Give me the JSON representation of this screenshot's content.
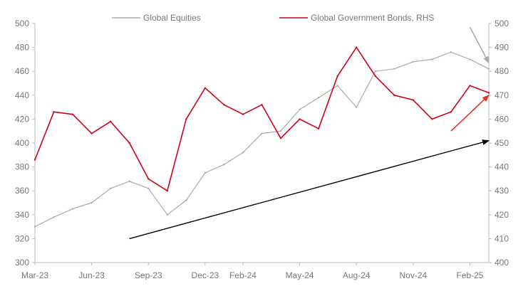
{
  "chart_data": {
    "type": "line",
    "title": "",
    "xlabel": "",
    "ylabel": "",
    "y2label": "",
    "ylim": [
      300,
      500
    ],
    "y2lim": [
      400,
      500
    ],
    "yticks": [
      300,
      320,
      340,
      360,
      380,
      400,
      420,
      440,
      460,
      480,
      500
    ],
    "y2ticks": [
      400,
      410,
      420,
      430,
      440,
      450,
      460,
      470,
      480,
      490,
      500
    ],
    "xticks": [
      "Mar-23",
      "Jun-23",
      "Sep-23",
      "Dec-23",
      "Feb-24",
      "May-24",
      "Aug-24",
      "Nov-24",
      "Feb-25"
    ],
    "grid": false,
    "legend_position": "top",
    "series": [
      {
        "name": "Global Equities",
        "axis": "left",
        "color": "#aaaaaa",
        "x": [
          "Mar-23",
          "Apr-23",
          "May-23",
          "Jun-23",
          "Jul-23",
          "Aug-23",
          "Sep-23",
          "Oct-23",
          "Nov-23",
          "Dec-23",
          "Jan-24",
          "Feb-24",
          "Mar-24",
          "Apr-24",
          "May-24",
          "Jun-24",
          "Jul-24",
          "Aug-24",
          "Sep-24",
          "Oct-24",
          "Nov-24",
          "Dec-24",
          "Jan-25",
          "Feb-25",
          "Mar-25"
        ],
        "values": [
          330,
          338,
          345,
          350,
          362,
          368,
          362,
          340,
          352,
          375,
          382,
          392,
          408,
          410,
          428,
          438,
          448,
          430,
          460,
          462,
          468,
          470,
          476,
          470,
          462
        ]
      },
      {
        "name": "Global Government Bonds, RHS",
        "axis": "right",
        "color": "#d0021b",
        "x": [
          "Mar-23",
          "Apr-23",
          "May-23",
          "Jun-23",
          "Jul-23",
          "Aug-23",
          "Sep-23",
          "Oct-23",
          "Nov-23",
          "Dec-23",
          "Jan-24",
          "Feb-24",
          "Mar-24",
          "Apr-24",
          "May-24",
          "Jun-24",
          "Jul-24",
          "Aug-24",
          "Sep-24",
          "Oct-24",
          "Nov-24",
          "Dec-24",
          "Jan-25",
          "Feb-25",
          "Mar-25"
        ],
        "values": [
          443,
          463,
          462,
          454,
          459,
          450,
          435,
          430,
          460,
          473,
          466,
          462,
          466,
          452,
          460,
          456,
          478,
          490,
          478,
          470,
          468,
          460,
          463,
          474,
          471
        ]
      }
    ],
    "annotations": [
      {
        "type": "arrow",
        "color": "#000000",
        "from": [
          "Aug-23",
          320
        ],
        "to": [
          "Mar-25",
          402
        ]
      },
      {
        "type": "arrow",
        "color": "#e8332a",
        "from": [
          "Jan-25",
          410
        ],
        "to": [
          "Mar-25",
          440
        ]
      },
      {
        "type": "arrow",
        "color": "#aaaaaa",
        "from": [
          "Feb-25",
          497
        ],
        "to": [
          "Mar-25",
          467
        ]
      }
    ]
  }
}
